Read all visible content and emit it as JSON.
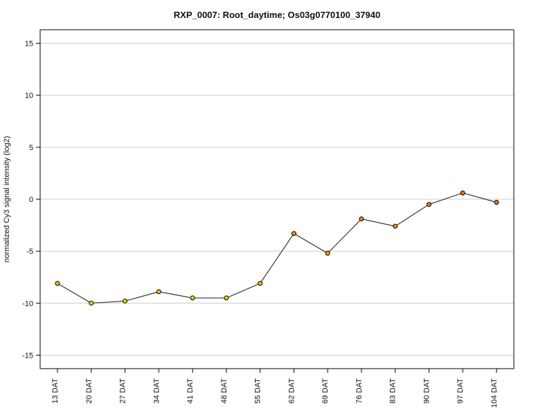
{
  "chart_data": {
    "type": "line",
    "title": "RXP_0007: Root_daytime; Os03g0770100_37940",
    "xlabel": "",
    "ylabel": "normalized Cy3 signal intensity (log2)",
    "categories": [
      "13 DAT",
      "20 DAT",
      "27 DAT",
      "34 DAT",
      "41 DAT",
      "48 DAT",
      "55 DAT",
      "62 DAT",
      "69 DAT",
      "76 DAT",
      "83 DAT",
      "90 DAT",
      "97 DAT",
      "104 DAT"
    ],
    "series": [
      {
        "values": [
          -8.1,
          -10.0,
          -9.8,
          -8.9,
          -9.5,
          -9.5,
          -8.1,
          -3.3,
          -5.2,
          -1.9,
          -2.6,
          -0.5,
          0.6,
          -0.3
        ]
      }
    ],
    "ylim": [
      -16.3,
      16.3
    ],
    "yticks": [
      -15,
      -10,
      -5,
      0,
      5,
      10,
      15
    ],
    "grid": true,
    "grid_axis": "y",
    "colors": {
      "line": "#333333",
      "marker_stroke": "#000000",
      "marker_low": "#f2d000",
      "marker_high": "#ff6a00",
      "grid": "#cccccc",
      "frame": "#000000"
    }
  }
}
